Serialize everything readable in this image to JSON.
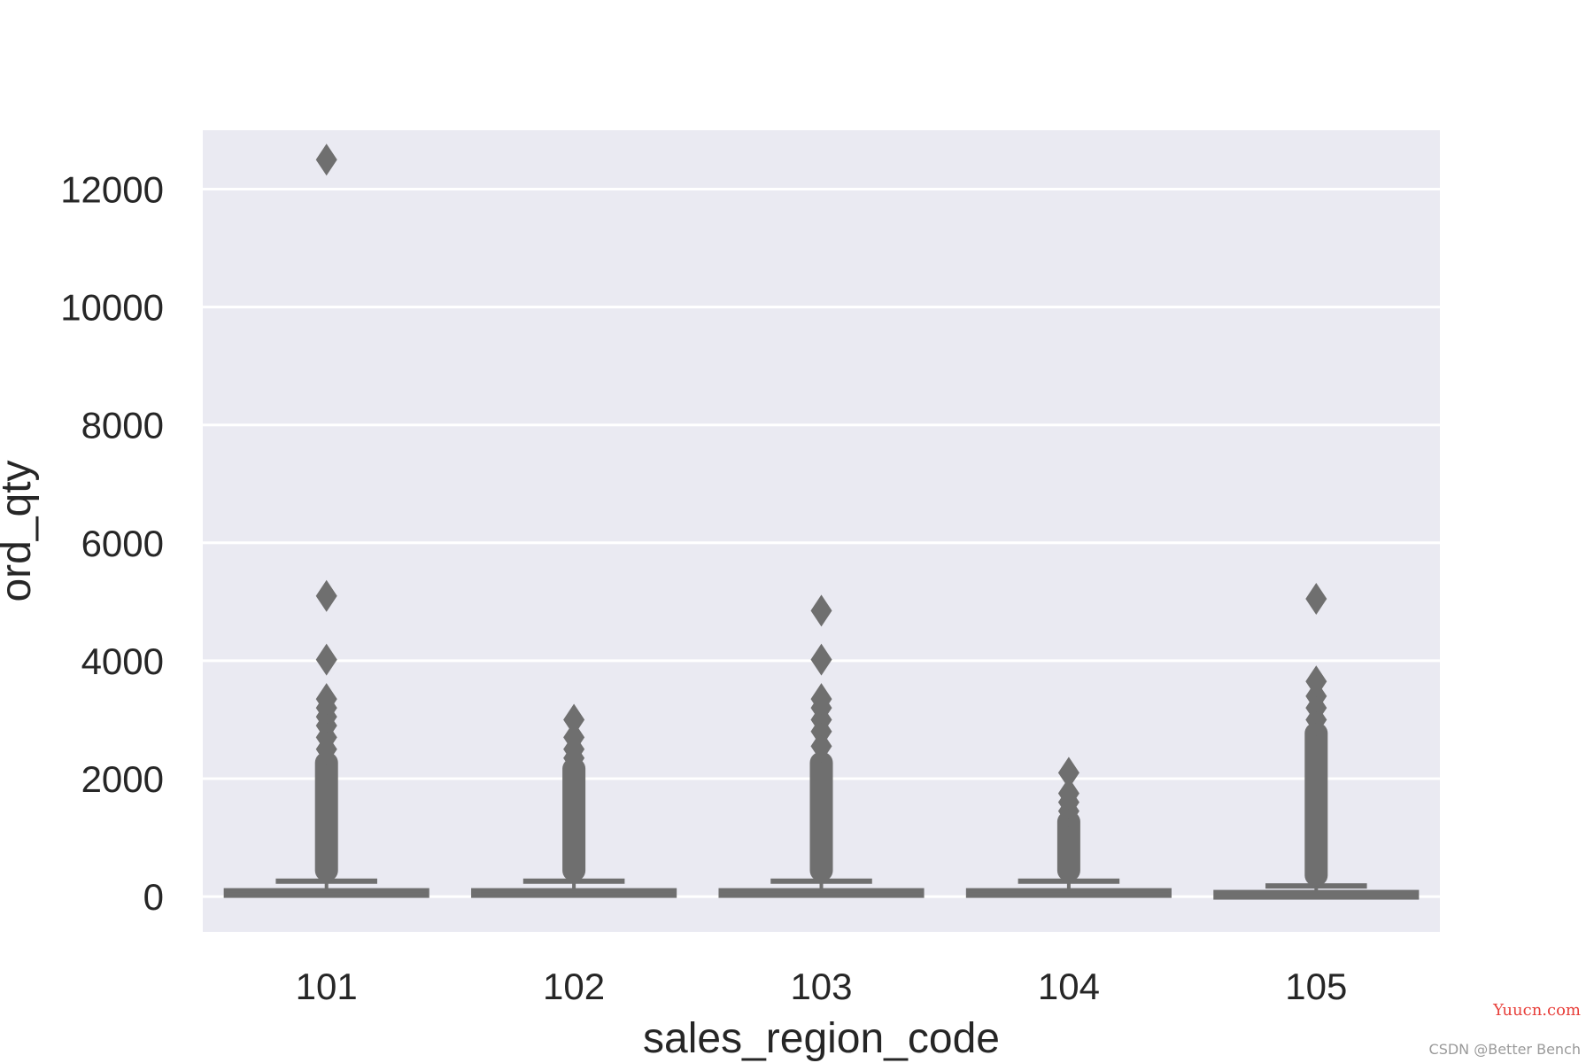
{
  "chart_data": {
    "type": "boxplot",
    "title": "",
    "xlabel": "sales_region_code",
    "ylabel": "ord_qty",
    "ylim": [
      -600,
      13000
    ],
    "yticks": [
      0,
      2000,
      4000,
      6000,
      8000,
      10000,
      12000
    ],
    "grid": true,
    "colors": {
      "plot_bg": "#eaeaf2",
      "grid": "#ffffff",
      "box": "#6f6f6f",
      "text": "#262626"
    },
    "categories": [
      "101",
      "102",
      "103",
      "104",
      "105"
    ],
    "boxes": [
      {
        "category": "101",
        "q1": 10,
        "median": 50,
        "q3": 120,
        "whisker_low": 0,
        "whisker_high": 260,
        "outlier_min": 260,
        "outlier_dense_max": 2300,
        "outliers": [
          2500,
          2700,
          2900,
          3050,
          3200,
          3350,
          4020,
          5100,
          12500
        ]
      },
      {
        "category": "102",
        "q1": 10,
        "median": 50,
        "q3": 120,
        "whisker_low": 0,
        "whisker_high": 260,
        "outlier_min": 260,
        "outlier_dense_max": 2200,
        "outliers": [
          2350,
          2500,
          2700,
          3000
        ]
      },
      {
        "category": "103",
        "q1": 10,
        "median": 50,
        "q3": 120,
        "whisker_low": 0,
        "whisker_high": 260,
        "outlier_min": 260,
        "outlier_dense_max": 2300,
        "outliers": [
          2550,
          2800,
          3000,
          3200,
          3350,
          4020,
          4850
        ]
      },
      {
        "category": "104",
        "q1": 10,
        "median": 50,
        "q3": 120,
        "whisker_low": 0,
        "whisker_high": 260,
        "outlier_min": 260,
        "outlier_dense_max": 1300,
        "outliers": [
          1450,
          1600,
          1750,
          2100
        ]
      },
      {
        "category": "105",
        "q1": 5,
        "median": 30,
        "q3": 90,
        "whisker_low": 0,
        "whisker_high": 180,
        "outlier_min": 180,
        "outlier_dense_max": 2800,
        "outliers": [
          3000,
          3200,
          3400,
          3650,
          5050
        ]
      }
    ]
  },
  "watermark": {
    "site": "Yuucn.com",
    "credit": "CSDN @Better Bench"
  }
}
